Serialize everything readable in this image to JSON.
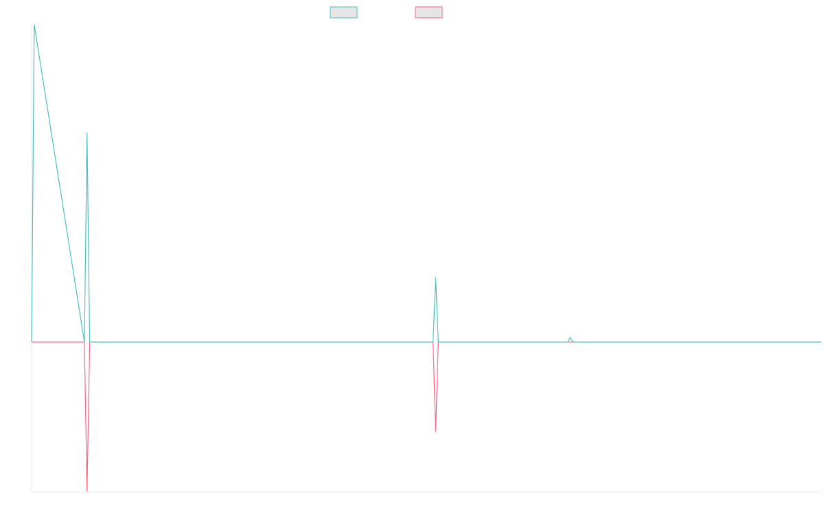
{
  "chart_data": {
    "type": "line",
    "title": "",
    "xlabel": "",
    "ylabel": "",
    "grid": false,
    "legend_position": "top-center",
    "x": [
      0,
      1,
      2,
      3,
      4,
      5,
      6,
      7,
      8,
      9,
      10,
      11,
      12,
      13,
      14,
      15,
      16,
      17,
      18,
      19,
      20,
      21,
      22,
      23,
      24,
      25,
      26,
      27,
      28,
      29,
      30,
      31,
      32,
      33,
      34,
      35,
      36,
      37,
      38,
      39,
      40,
      41,
      42,
      43,
      44,
      45,
      46,
      47,
      48,
      49,
      50,
      51,
      52,
      53,
      54,
      55,
      56,
      57,
      58,
      59,
      60,
      61,
      62,
      63,
      64,
      65,
      66,
      67,
      68,
      69,
      70,
      71,
      72,
      73,
      74,
      75,
      76,
      77,
      78,
      79,
      80,
      81,
      82,
      83,
      84,
      85,
      86,
      87,
      88,
      89,
      90,
      91,
      92,
      93,
      94,
      95,
      96,
      97,
      98,
      99,
      100,
      101,
      102,
      103,
      104,
      105,
      106,
      107,
      108,
      109,
      110,
      111,
      112,
      113,
      114,
      115,
      116,
      117,
      118,
      119,
      120,
      121,
      122,
      123,
      124,
      125,
      126,
      127,
      128,
      129,
      130,
      131,
      132,
      133,
      134,
      135,
      136,
      137,
      138,
      139,
      140,
      141,
      142,
      143,
      144,
      145,
      146,
      147,
      148,
      149,
      150,
      151,
      152,
      153,
      154,
      155,
      156,
      157,
      158,
      159,
      160,
      161,
      162,
      163,
      164,
      165,
      166,
      167,
      168,
      169,
      170,
      171,
      172,
      173,
      174,
      175,
      176,
      177,
      178,
      179,
      180,
      181,
      182,
      183,
      184,
      185,
      186,
      187,
      188,
      189,
      190,
      191,
      192,
      193,
      194,
      195,
      196,
      197,
      198,
      199,
      200,
      201,
      202,
      203,
      204,
      205,
      206,
      207,
      208,
      209,
      210,
      211,
      212,
      213,
      214,
      215,
      216,
      217,
      218,
      219,
      220,
      221,
      222,
      223,
      224,
      225,
      226,
      227,
      228,
      229,
      230,
      231,
      232,
      233,
      234,
      235,
      236,
      237,
      238,
      239,
      240,
      241,
      242,
      243,
      244,
      245,
      246,
      247,
      248,
      249,
      250,
      251,
      252,
      253,
      254,
      255,
      256,
      257,
      258,
      259,
      260,
      261,
      262,
      263,
      264,
      265,
      266,
      267,
      268,
      269,
      270,
      271,
      272,
      273,
      274,
      275,
      276,
      277,
      278,
      279,
      280,
      281,
      282,
      283,
      284,
      285,
      286,
      287,
      288,
      289,
      290,
      291,
      292,
      293,
      294,
      295,
      296,
      297,
      298,
      299
    ],
    "ylim": [
      -1,
      2.12
    ],
    "series": [
      {
        "name": "",
        "color": "#4bc0c0",
        "points": [
          [
            0,
            0
          ],
          [
            1,
            2.12
          ],
          [
            20,
            0
          ],
          [
            21,
            1.4
          ],
          [
            22,
            0
          ],
          [
            152,
            0
          ],
          [
            153,
            0.43
          ],
          [
            154,
            0
          ],
          [
            203,
            0
          ],
          [
            204,
            0.03
          ],
          [
            205,
            0
          ],
          [
            299,
            0
          ]
        ]
      },
      {
        "name": "",
        "color": "#ff6384",
        "points": [
          [
            0,
            0
          ],
          [
            20,
            0
          ],
          [
            21,
            -1
          ],
          [
            22,
            0
          ],
          [
            152,
            0
          ],
          [
            153,
            -0.6
          ],
          [
            154,
            0
          ],
          [
            299,
            0
          ]
        ]
      }
    ]
  }
}
